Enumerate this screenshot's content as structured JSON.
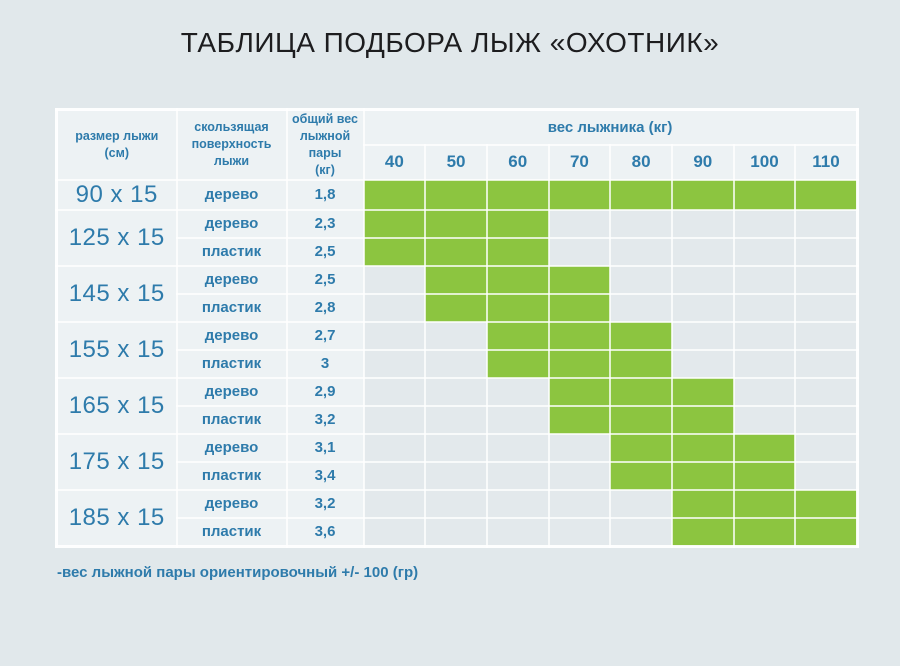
{
  "title": "ТАБЛИЦА ПОДБОРА ЛЫЖ «ОХОТНИК»",
  "footnote": "-вес лыжной пары ориентировочный +/- 100 (гр)",
  "header": {
    "size_label": "размер лыжи\n(см)",
    "surface_label": "скользящая\nповерхность\nлыжи",
    "pair_weight_label": "общий вес\nлыжной пары\n(кг)",
    "skier_weight_label": "вес лыжника (кг)"
  },
  "colors": {
    "highlight_green": "#8cc540",
    "text_blue": "#2e7bab",
    "page_bg": "#e1e8eb",
    "label_cell_bg": "#edf2f4",
    "grid_cell_bg": "#e3e9ec",
    "title_color": "#1d1d1f"
  },
  "chart_data": {
    "type": "table",
    "title": "ТАБЛИЦА ПОДБОРА ЛЫЖ «ОХОТНИК»",
    "skier_weight_columns_kg": [
      40,
      50,
      60,
      70,
      80,
      90,
      100,
      110
    ],
    "groups": [
      {
        "size": "90 x 15",
        "variants": [
          {
            "surface": "дерево",
            "pair_weight": "1,8",
            "suitable_kg": [
              40,
              50,
              60,
              70,
              80,
              90,
              100,
              110
            ]
          }
        ]
      },
      {
        "size": "125 x 15",
        "variants": [
          {
            "surface": "дерево",
            "pair_weight": "2,3",
            "suitable_kg": [
              40,
              50,
              60
            ]
          },
          {
            "surface": "пластик",
            "pair_weight": "2,5",
            "suitable_kg": [
              40,
              50,
              60
            ]
          }
        ]
      },
      {
        "size": "145 x 15",
        "variants": [
          {
            "surface": "дерево",
            "pair_weight": "2,5",
            "suitable_kg": [
              50,
              60,
              70
            ]
          },
          {
            "surface": "пластик",
            "pair_weight": "2,8",
            "suitable_kg": [
              50,
              60,
              70
            ]
          }
        ]
      },
      {
        "size": "155 x 15",
        "variants": [
          {
            "surface": "дерево",
            "pair_weight": "2,7",
            "suitable_kg": [
              60,
              70,
              80
            ]
          },
          {
            "surface": "пластик",
            "pair_weight": "3",
            "suitable_kg": [
              60,
              70,
              80
            ]
          }
        ]
      },
      {
        "size": "165 x 15",
        "variants": [
          {
            "surface": "дерево",
            "pair_weight": "2,9",
            "suitable_kg": [
              70,
              80,
              90
            ]
          },
          {
            "surface": "пластик",
            "pair_weight": "3,2",
            "suitable_kg": [
              70,
              80,
              90
            ]
          }
        ]
      },
      {
        "size": "175 x 15",
        "variants": [
          {
            "surface": "дерево",
            "pair_weight": "3,1",
            "suitable_kg": [
              80,
              90,
              100
            ]
          },
          {
            "surface": "пластик",
            "pair_weight": "3,4",
            "suitable_kg": [
              80,
              90,
              100
            ]
          }
        ]
      },
      {
        "size": "185 x 15",
        "variants": [
          {
            "surface": "дерево",
            "pair_weight": "3,2",
            "suitable_kg": [
              90,
              100,
              110
            ]
          },
          {
            "surface": "пластик",
            "pair_weight": "3,6",
            "suitable_kg": [
              90,
              100,
              110
            ]
          }
        ]
      }
    ]
  }
}
